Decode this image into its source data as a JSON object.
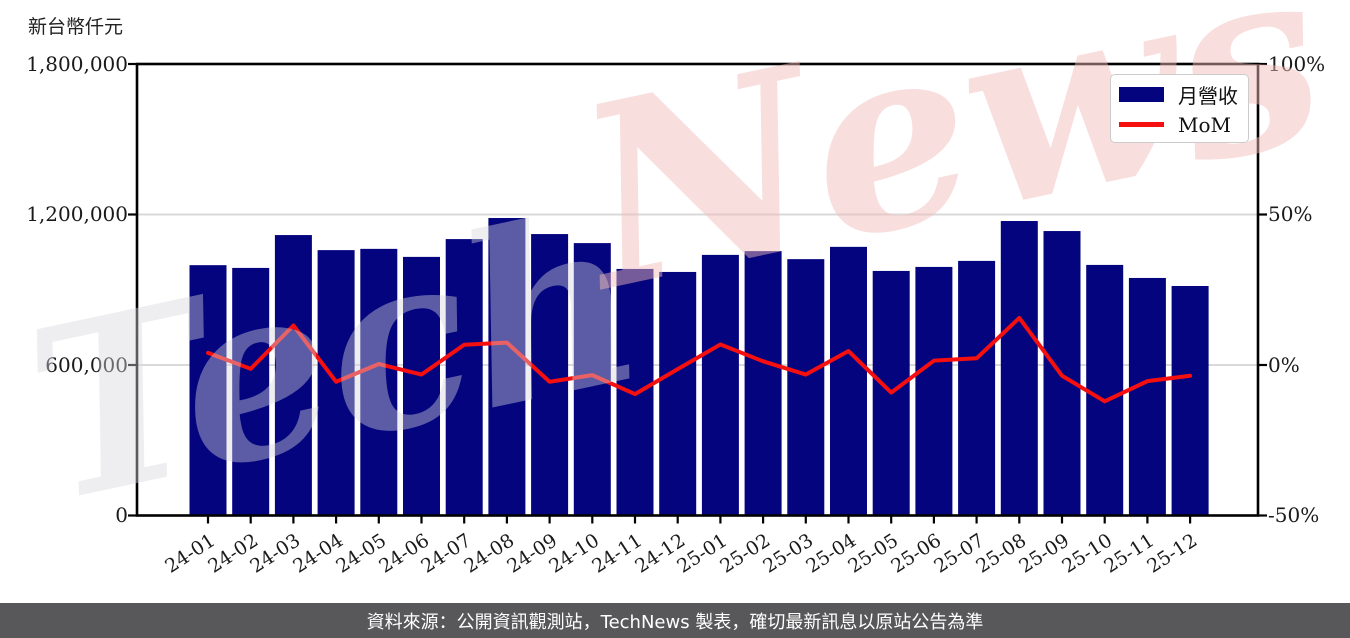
{
  "unit_label": "新台幣仟元",
  "legend": {
    "revenue_label": "月營收",
    "mom_label": "MoM"
  },
  "watermark": {
    "part1": "Tech",
    "part2": "News"
  },
  "footer": {
    "text": "資料來源：公開資訊觀測站，TechNews 製表，確切最新訊息以原站公告為準"
  },
  "axes": {
    "left_ticks": [
      "1,800,000",
      "1,200,000",
      "600,000",
      "0"
    ],
    "right_ticks": [
      "100%",
      "50%",
      "0%",
      "-50%"
    ]
  },
  "colors": {
    "bar": "#04047f",
    "line": "#f50f0f",
    "grid": "#d9d9d9",
    "spine": "#000000",
    "footer_bg": "#58585a",
    "watermark_pink": "#f6dede",
    "watermark_gray": "#ebebee"
  },
  "chart_data": {
    "type": "bar",
    "title": "",
    "xlabel": "",
    "ylabel_left": "新台幣仟元",
    "left_ylim": [
      0,
      1800000
    ],
    "right_ylim_pct": [
      -50,
      100
    ],
    "grid": "horizontal",
    "legend_position": "top-right",
    "categories": [
      "24-01",
      "24-02",
      "24-03",
      "24-04",
      "24-05",
      "24-06",
      "24-07",
      "24-08",
      "24-09",
      "24-10",
      "24-11",
      "24-12",
      "25-01",
      "25-02",
      "25-03",
      "25-04",
      "25-05",
      "25-06",
      "25-07",
      "25-08",
      "25-09",
      "25-10",
      "25-11",
      "25-12"
    ],
    "series": [
      {
        "name": "月營收",
        "type": "bar",
        "axis": "left",
        "values": [
          998000,
          987000,
          1118000,
          1058000,
          1063000,
          1031000,
          1102000,
          1186000,
          1122000,
          1086000,
          983000,
          971000,
          1039000,
          1054000,
          1022000,
          1071000,
          975000,
          991000,
          1015000,
          1174000,
          1134000,
          999000,
          947000,
          915000
        ]
      },
      {
        "name": "MoM",
        "type": "line",
        "axis": "right",
        "values_pct": [
          4.2,
          -1.1,
          13.3,
          -5.4,
          0.5,
          -3.0,
          6.9,
          7.6,
          -5.4,
          -3.2,
          -9.5,
          -1.2,
          7.0,
          1.4,
          -3.0,
          4.8,
          -9.0,
          1.6,
          2.4,
          15.8,
          -3.4,
          -11.9,
          -5.2,
          -3.4
        ]
      }
    ]
  }
}
